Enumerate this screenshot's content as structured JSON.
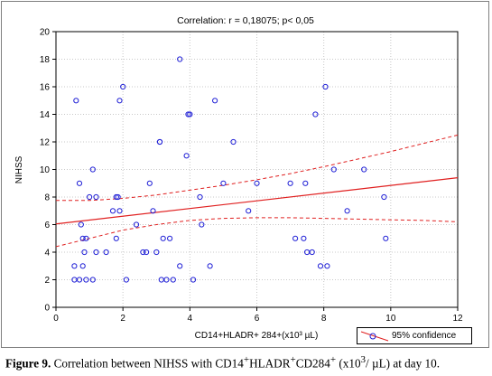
{
  "chart_data": {
    "type": "scatter",
    "title": "Correlation: r = 0,18075; p< 0,05",
    "xlabel": "CD14+HLADR+ 284+(x10³ µL)",
    "ylabel": "NIHSS",
    "xlim": [
      0,
      12
    ],
    "ylim": [
      0,
      20
    ],
    "xticks": [
      "0",
      "2",
      "4",
      "6",
      "8",
      "10",
      "12"
    ],
    "yticks": [
      "0",
      "2",
      "4",
      "6",
      "8",
      "10",
      "12",
      "14",
      "16",
      "18",
      "20"
    ],
    "grid": true,
    "legend": {
      "placement": "bottom-right",
      "entry": "95% confidence"
    },
    "regression": {
      "x": [
        0,
        12
      ],
      "y": [
        6.05,
        9.4
      ]
    },
    "confidence_upper": {
      "x": [
        0,
        1,
        2,
        3,
        4,
        5,
        6,
        7,
        8,
        9,
        10,
        11,
        12
      ],
      "y": [
        7.75,
        7.75,
        7.9,
        8.15,
        8.5,
        8.85,
        9.25,
        9.7,
        10.2,
        10.75,
        11.3,
        11.9,
        12.5
      ]
    },
    "confidence_lower": {
      "x": [
        0,
        1,
        2,
        3,
        4,
        5,
        6,
        7,
        8,
        9,
        10,
        11,
        12
      ],
      "y": [
        4.4,
        5.0,
        5.6,
        6.0,
        6.3,
        6.45,
        6.5,
        6.5,
        6.45,
        6.4,
        6.35,
        6.3,
        6.2
      ]
    },
    "points": {
      "x": [
        0.55,
        0.55,
        0.6,
        0.7,
        0.7,
        0.75,
        0.8,
        0.8,
        0.85,
        0.9,
        0.9,
        1.0,
        1.1,
        1.1,
        1.2,
        1.2,
        1.5,
        1.7,
        1.8,
        1.8,
        1.85,
        1.9,
        1.9,
        2.0,
        2.1,
        2.4,
        2.6,
        2.7,
        2.8,
        2.9,
        3.0,
        3.1,
        3.1,
        3.15,
        3.2,
        3.3,
        3.4,
        3.5,
        3.7,
        3.7,
        3.9,
        3.95,
        4.0,
        4.1,
        4.3,
        4.35,
        4.6,
        4.75,
        5.0,
        5.3,
        5.75,
        6.0,
        7.0,
        7.15,
        7.4,
        7.45,
        7.5,
        7.65,
        7.75,
        7.9,
        8.05,
        8.1,
        8.3,
        8.7,
        9.2,
        9.8,
        9.85
      ],
      "y": [
        2,
        3,
        15,
        2,
        9,
        6,
        5,
        3,
        4,
        2,
        5,
        8,
        2,
        10,
        4,
        8,
        4,
        7,
        8,
        5,
        8,
        15,
        7,
        16,
        2,
        6,
        4,
        4,
        9,
        7,
        4,
        12,
        12,
        2,
        5,
        2,
        5,
        2,
        18,
        3,
        11,
        14,
        14,
        2,
        8,
        6,
        3,
        15,
        9,
        12,
        7,
        9,
        9,
        5,
        5,
        9,
        4,
        4,
        14,
        3,
        16,
        3,
        10,
        7,
        10,
        8,
        5
      ]
    }
  },
  "caption": {
    "label": "Figure 9.",
    "text_pre": " Correlation between NIHSS with CD14",
    "sup1": "+",
    "text_mid1": "HLADR",
    "sup2": "+",
    "text_mid2": "CD284",
    "sup3": "+",
    "text_mid3": " (x10",
    "sup4": "3",
    "text_post": "/ µL) at day 10."
  },
  "colors": {
    "points": "#1f1fd6",
    "regression": "#e02020",
    "confidence": "#e02020",
    "grid": "#c8c8c8",
    "plot_background": "#ffffff"
  }
}
